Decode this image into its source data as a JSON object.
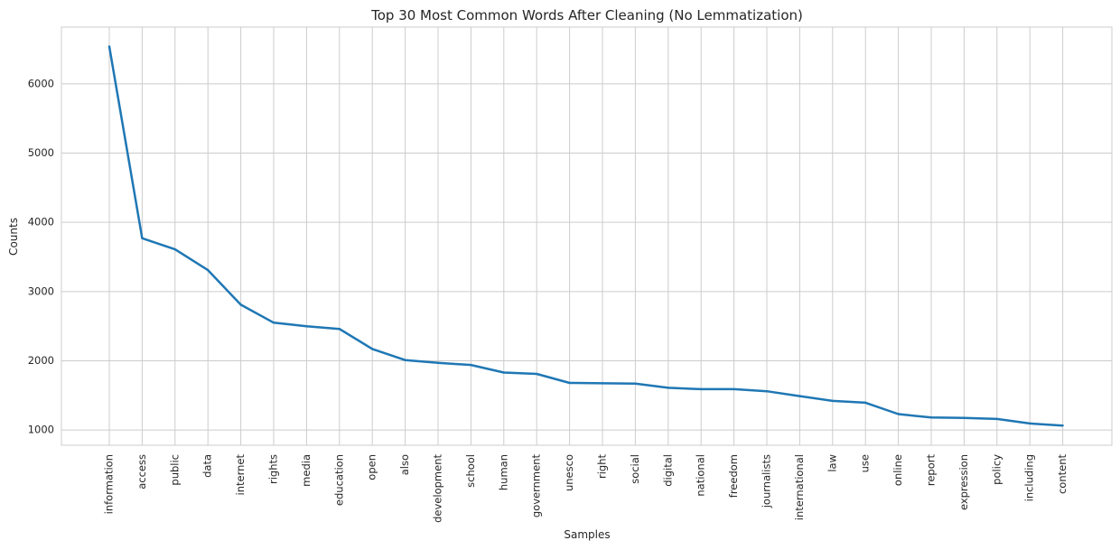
{
  "chart_data": {
    "type": "line",
    "title": "Top 30 Most Common Words After Cleaning (No Lemmatization)",
    "xlabel": "Samples",
    "ylabel": "Counts",
    "categories": [
      "information",
      "access",
      "public",
      "data",
      "internet",
      "rights",
      "media",
      "education",
      "open",
      "also",
      "development",
      "school",
      "human",
      "government",
      "unesco",
      "right",
      "social",
      "digital",
      "national",
      "freedom",
      "journalists",
      "international",
      "law",
      "use",
      "online",
      "report",
      "expression",
      "policy",
      "including",
      "content"
    ],
    "values": [
      6540,
      3770,
      3610,
      3310,
      2810,
      2550,
      2500,
      2460,
      2170,
      2010,
      1970,
      1940,
      1830,
      1810,
      1680,
      1675,
      1670,
      1610,
      1590,
      1590,
      1560,
      1490,
      1420,
      1395,
      1230,
      1180,
      1175,
      1160,
      1095,
      1065
    ],
    "yticks": [
      1000,
      2000,
      3000,
      4000,
      5000,
      6000
    ],
    "ylim": [
      780,
      6820
    ],
    "grid": true,
    "line_color": "#1f77b4",
    "grid_color": "#cccccc"
  }
}
